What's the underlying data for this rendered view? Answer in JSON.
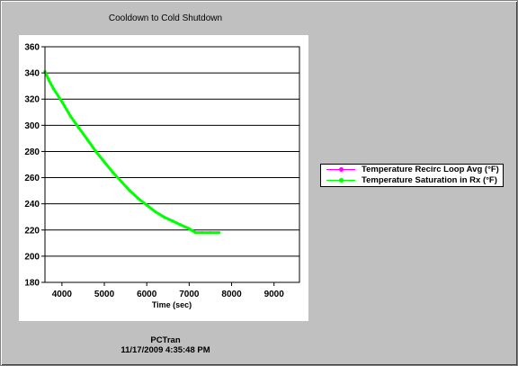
{
  "window": {
    "footer_app": "PCTran",
    "footer_timestamp": "11/17/2009 4:35:48 PM"
  },
  "chart_data": {
    "type": "line",
    "title": "Cooldown to Cold Shutdown",
    "xlabel": "Time (sec)",
    "ylabel": "",
    "xlim": [
      3600,
      9600
    ],
    "ylim": [
      180,
      360
    ],
    "x_ticks": [
      "4000",
      "5000",
      "6000",
      "7000",
      "8000",
      "9000"
    ],
    "y_ticks": [
      "360",
      "340",
      "320",
      "300",
      "280",
      "260",
      "240",
      "220",
      "200",
      "180"
    ],
    "grid": "horizontal",
    "legend_position": "right",
    "series": [
      {
        "name": "Temperature Recirc Loop Avg (°F)",
        "color": "#ff00ff",
        "x": [],
        "y": []
      },
      {
        "name": "Temperature Saturation  in Rx (°F)",
        "color": "#00ff00",
        "x": [
          3600,
          3700,
          3800,
          4000,
          4200,
          4400,
          4600,
          4800,
          5000,
          5200,
          5400,
          5600,
          5800,
          6000,
          6200,
          6400,
          6600,
          6800,
          7000,
          7150,
          7300,
          7500,
          7700
        ],
        "y": [
          341,
          334,
          328,
          318,
          307,
          298,
          289,
          280,
          272,
          264,
          257,
          250,
          244,
          239,
          234,
          230,
          227,
          224,
          221,
          218,
          218,
          218,
          218
        ]
      }
    ]
  }
}
